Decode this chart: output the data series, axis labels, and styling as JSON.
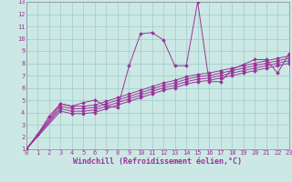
{
  "xlabel": "Windchill (Refroidissement éolien,°C)",
  "bg_color": "#cce8e4",
  "grid_color": "#99cccc",
  "line_color": "#993399",
  "xlim": [
    0,
    23
  ],
  "ylim": [
    1,
    13
  ],
  "xticks": [
    0,
    1,
    2,
    3,
    4,
    5,
    6,
    7,
    8,
    9,
    10,
    11,
    12,
    13,
    14,
    15,
    16,
    17,
    18,
    19,
    20,
    21,
    22,
    23
  ],
  "yticks": [
    1,
    2,
    3,
    4,
    5,
    6,
    7,
    8,
    9,
    10,
    11,
    12,
    13
  ],
  "lines": [
    {
      "x": [
        0,
        1,
        2,
        3,
        4,
        5,
        6,
        7,
        8,
        9,
        10,
        11,
        12,
        13,
        14,
        15,
        16,
        17,
        18,
        19,
        20,
        21,
        22,
        23
      ],
      "y": [
        1,
        2.2,
        3.7,
        4.7,
        4.5,
        4.8,
        5.0,
        4.5,
        4.4,
        7.8,
        10.4,
        10.5,
        9.9,
        7.8,
        7.8,
        13.0,
        6.5,
        6.5,
        7.5,
        7.9,
        8.3,
        8.3,
        7.2,
        8.8
      ]
    },
    {
      "x": [
        0,
        3,
        4,
        5,
        6,
        7,
        8,
        9,
        10,
        11,
        12,
        13,
        14,
        15,
        16,
        17,
        18,
        19,
        20,
        21,
        22,
        23
      ],
      "y": [
        1,
        4.7,
        4.5,
        4.5,
        4.6,
        4.9,
        5.2,
        5.5,
        5.8,
        6.1,
        6.4,
        6.6,
        6.9,
        7.1,
        7.2,
        7.4,
        7.6,
        7.8,
        8.0,
        8.2,
        8.4,
        8.6
      ]
    },
    {
      "x": [
        0,
        3,
        4,
        5,
        6,
        7,
        8,
        9,
        10,
        11,
        12,
        13,
        14,
        15,
        16,
        17,
        18,
        19,
        20,
        21,
        22,
        23
      ],
      "y": [
        1,
        4.5,
        4.3,
        4.3,
        4.4,
        4.7,
        5.0,
        5.3,
        5.6,
        5.9,
        6.2,
        6.4,
        6.7,
        6.9,
        7.0,
        7.2,
        7.4,
        7.6,
        7.8,
        8.0,
        8.2,
        8.4
      ]
    },
    {
      "x": [
        0,
        3,
        4,
        5,
        6,
        7,
        8,
        9,
        10,
        11,
        12,
        13,
        14,
        15,
        16,
        17,
        18,
        19,
        20,
        21,
        22,
        23
      ],
      "y": [
        1,
        4.3,
        4.1,
        4.1,
        4.2,
        4.5,
        4.8,
        5.1,
        5.4,
        5.7,
        6.0,
        6.2,
        6.5,
        6.7,
        6.8,
        7.0,
        7.2,
        7.4,
        7.6,
        7.8,
        8.0,
        8.2
      ]
    },
    {
      "x": [
        0,
        3,
        4,
        5,
        6,
        7,
        8,
        9,
        10,
        11,
        12,
        13,
        14,
        15,
        16,
        17,
        18,
        19,
        20,
        21,
        22,
        23
      ],
      "y": [
        1,
        4.1,
        3.9,
        3.9,
        4.0,
        4.3,
        4.6,
        4.9,
        5.2,
        5.5,
        5.8,
        6.0,
        6.3,
        6.5,
        6.6,
        6.8,
        7.0,
        7.2,
        7.4,
        7.6,
        7.8,
        8.0
      ]
    }
  ],
  "marker": "D",
  "markersize": 2.0,
  "linewidth": 0.7,
  "tick_fontsize": 5.0,
  "xlabel_fontsize": 6.0,
  "xlabel_color": "#993399",
  "xlabel_fontweight": "bold",
  "tick_color": "#993399"
}
